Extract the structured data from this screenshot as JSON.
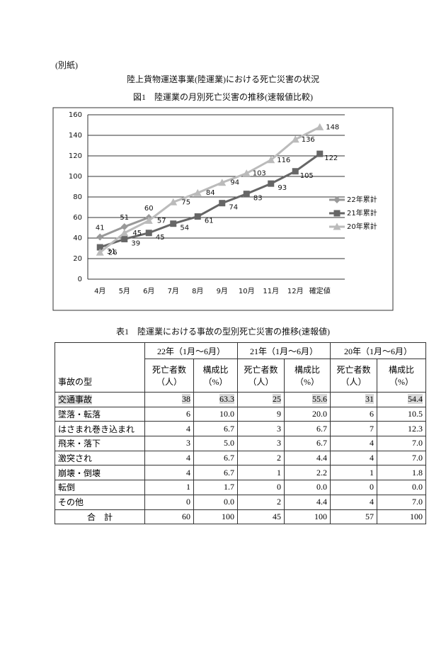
{
  "header": {
    "note": "(別紙)",
    "title": "陸上貨物運送事業(陸運業)における死亡災害の状況",
    "figure_caption": "図1　陸運業の月別死亡災害の推移(速報値比較)"
  },
  "chart_data": {
    "type": "line",
    "categories": [
      "4月",
      "5月",
      "6月",
      "7月",
      "8月",
      "9月",
      "10月",
      "11月",
      "12月",
      "確定値"
    ],
    "series": [
      {
        "name": "22年累計",
        "color": "#999999",
        "marker": "diamond",
        "values": [
          41,
          51,
          60,
          null,
          null,
          null,
          null,
          null,
          null,
          null
        ]
      },
      {
        "name": "21年累計",
        "color": "#666666",
        "marker": "square",
        "values": [
          31,
          39,
          45,
          54,
          61,
          74,
          83,
          93,
          105,
          122
        ]
      },
      {
        "name": "20年累計",
        "color": "#bbbbbb",
        "marker": "triangle",
        "values": [
          26,
          45,
          57,
          75,
          84,
          94,
          103,
          116,
          136,
          148
        ]
      }
    ],
    "ylim": [
      0,
      160
    ],
    "yticks": [
      0,
      20,
      40,
      60,
      80,
      100,
      120,
      140,
      160
    ],
    "grid": true,
    "legend": "right"
  },
  "table": {
    "caption": "表1　陸運業における事故の型別死亡災害の推移(速報値)",
    "row_header": "事故の型",
    "groups": [
      {
        "period": "22年（1月～6月）",
        "columns": [
          [
            "死亡者数",
            "（人）"
          ],
          [
            "構成比",
            "（%）"
          ]
        ]
      },
      {
        "period": "21年（1月～6月）",
        "columns": [
          [
            "死亡者数",
            "（人）"
          ],
          [
            "構成比",
            "（%）"
          ]
        ]
      },
      {
        "period": "20年（1月～6月）",
        "columns": [
          [
            "死亡者数",
            "（人）"
          ],
          [
            "構成比",
            "（%）"
          ]
        ]
      }
    ],
    "rows": [
      [
        "交通事故",
        "38",
        "63.3",
        "25",
        "55.6",
        "31",
        "54.4"
      ],
      [
        "墜落・転落",
        "6",
        "10.0",
        "9",
        "20.0",
        "6",
        "10.5"
      ],
      [
        "はさまれ巻き込まれ",
        "4",
        "6.7",
        "3",
        "6.7",
        "7",
        "12.3"
      ],
      [
        "飛来・落下",
        "3",
        "5.0",
        "3",
        "6.7",
        "4",
        "7.0"
      ],
      [
        "激突され",
        "4",
        "6.7",
        "2",
        "4.4",
        "4",
        "7.0"
      ],
      [
        "崩壊・倒壊",
        "4",
        "6.7",
        "1",
        "2.2",
        "1",
        "1.8"
      ],
      [
        "転倒",
        "1",
        "1.7",
        "0",
        "0.0",
        "0",
        "0.0"
      ],
      [
        "その他",
        "0",
        "0.0",
        "2",
        "4.4",
        "4",
        "7.0"
      ],
      [
        "合　計",
        "60",
        "100",
        "45",
        "100",
        "57",
        "100"
      ]
    ],
    "highlight_row": 0
  }
}
